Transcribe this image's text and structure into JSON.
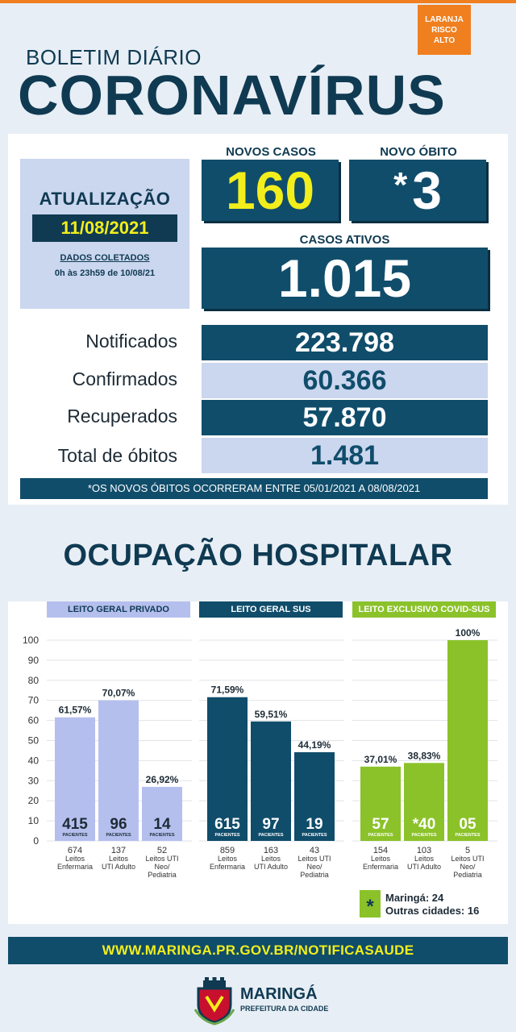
{
  "header": {
    "risk_badge": [
      "LARANJA",
      "RISCO",
      "ALTO"
    ],
    "bulletin_label": "BOLETIM DIÁRIO",
    "title": "CORONAVÍRUS"
  },
  "update": {
    "title": "ATUALIZAÇÃO",
    "date": "11/08/2021",
    "collected_label": "DADOS COLETADOS",
    "collected_range": "0h às 23h59 de 10/08/21"
  },
  "kpis": {
    "new_cases_label": "NOVOS CASOS",
    "new_cases": "160",
    "new_death_label": "NOVO ÓBITO",
    "new_death_mark": "*",
    "new_death": "3",
    "active_label": "CASOS ATIVOS",
    "active": "1.015"
  },
  "stats": [
    {
      "label": "Notificados",
      "value": "223.798"
    },
    {
      "label": "Confirmados",
      "value": "60.366"
    },
    {
      "label": "Recuperados",
      "value": "57.870"
    },
    {
      "label": "Total de óbitos",
      "value": "1.481"
    }
  ],
  "note": "*OS NOVOS ÓBITOS OCORRERAM ENTRE 05/01/2021 A 08/08/2021",
  "hospital_title": "OCUPAÇÃO HOSPITALAR",
  "colors": {
    "navy": "#0f3a52",
    "teal": "#104d6b",
    "yellow": "#f2ee1c",
    "orange": "#f07f1f",
    "lavender": "#b5bfee",
    "green": "#8bc22a"
  },
  "chart_data": {
    "type": "bar",
    "ylim": [
      0,
      100
    ],
    "yticks": [
      0,
      10,
      20,
      30,
      40,
      50,
      60,
      70,
      80,
      90,
      100
    ],
    "grid": true,
    "value_suffix": "PACIENTES",
    "groups": [
      {
        "name": "LEITO GERAL PRIVADO",
        "bars": [
          {
            "percent": 61.57,
            "label": "61,57%",
            "patients": "415",
            "capacity": "674",
            "category": [
              "Leitos",
              "Enfermaria"
            ]
          },
          {
            "percent": 70.07,
            "label": "70,07%",
            "patients": "96",
            "capacity": "137",
            "category": [
              "Leitos",
              "UTI Adulto"
            ]
          },
          {
            "percent": 26.92,
            "label": "26,92%",
            "patients": "14",
            "capacity": "52",
            "category": [
              "Leitos UTI",
              "Neo/",
              "Pediatria"
            ]
          }
        ]
      },
      {
        "name": "LEITO GERAL SUS",
        "bars": [
          {
            "percent": 71.59,
            "label": "71,59%",
            "patients": "615",
            "capacity": "859",
            "category": [
              "Leitos",
              "Enfermaria"
            ]
          },
          {
            "percent": 59.51,
            "label": "59,51%",
            "patients": "97",
            "capacity": "163",
            "category": [
              "Leitos",
              "UTI Adulto"
            ]
          },
          {
            "percent": 44.19,
            "label": "44,19%",
            "patients": "19",
            "capacity": "43",
            "category": [
              "Leitos UTI",
              "Neo/",
              "Pediatria"
            ]
          }
        ]
      },
      {
        "name": "LEITO EXCLUSIVO COVID-SUS",
        "bars": [
          {
            "percent": 37.01,
            "label": "37,01%",
            "patients": "57",
            "capacity": "154",
            "category": [
              "Leitos",
              "Enfermaria"
            ]
          },
          {
            "percent": 38.83,
            "label": "38,83%",
            "patients": "*40",
            "capacity": "103",
            "category": [
              "Leitos",
              "UTI Adulto"
            ]
          },
          {
            "percent": 100,
            "label": "100%",
            "patients": "05",
            "capacity": "5",
            "category": [
              "Leitos UTI",
              "Neo/",
              "Pediatria"
            ]
          }
        ]
      }
    ],
    "annotation": {
      "mark": "*",
      "lines": [
        "Maringá: 24",
        "Outras cidades: 16"
      ]
    }
  },
  "footer": {
    "url": "WWW.MARINGA.PR.GOV.BR/NOTIFICASAUDE",
    "city": "MARINGÁ",
    "city_sub": "PREFEITURA DA CIDADE"
  }
}
